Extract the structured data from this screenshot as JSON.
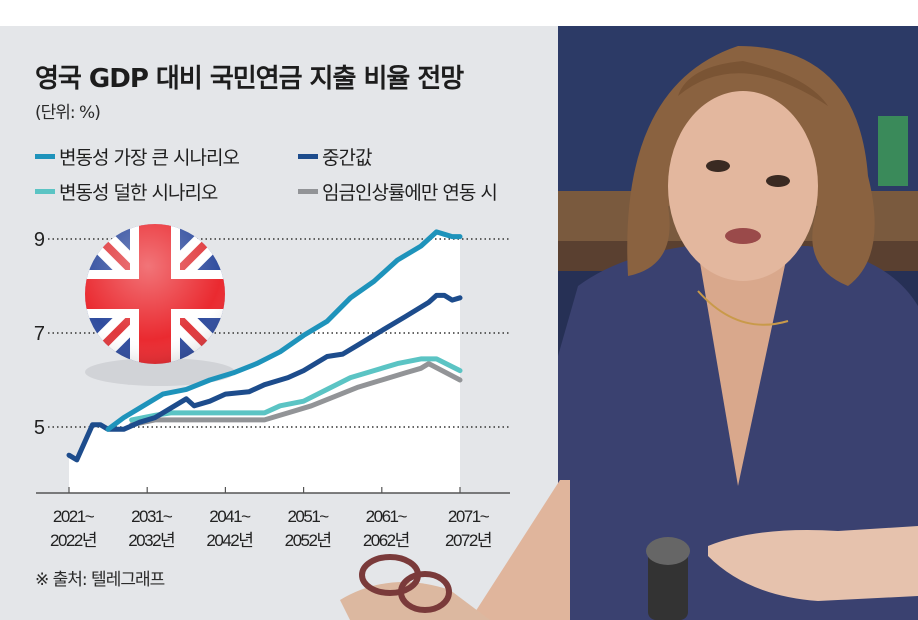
{
  "header": {
    "title": "영국 GDP 대비 국민연금 지출 비율 전망",
    "unit": "(단위: %)"
  },
  "legend": [
    {
      "label": "변동성 가장 큰 시나리오",
      "color": "#1e93bb"
    },
    {
      "label": "중간값",
      "color": "#1d4c8c"
    },
    {
      "label": "변동성 덜한 시나리오",
      "color": "#5bc4c4"
    },
    {
      "label": "임금인상률에만 연동 시",
      "color": "#929497"
    }
  ],
  "source": "※ 출처: 텔레그래프",
  "colors": {
    "panel_bg": "#e4e6e9",
    "plot_bg": "#ffffff",
    "axis": "#555555",
    "text": "#1d1d1d"
  },
  "chart_data": {
    "type": "line",
    "title": "영국 GDP 대비 국민연금 지출 비율 전망",
    "subtitle": "(단위: %)",
    "xlabel": "",
    "ylabel": "%",
    "ylim": [
      3.8,
      9.4
    ],
    "yticks": [
      5,
      7,
      9
    ],
    "ytick_labels": [
      "5",
      "7",
      "9"
    ],
    "xlim": [
      2021,
      2071
    ],
    "xticks": [
      2021,
      2031,
      2041,
      2051,
      2061,
      2071
    ],
    "xtick_labels": [
      [
        "2021~",
        "2022년"
      ],
      [
        "2031~",
        "2032년"
      ],
      [
        "2041~",
        "2042년"
      ],
      [
        "2051~",
        "2052년"
      ],
      [
        "2061~",
        "2062년"
      ],
      [
        "2071~",
        "2072년"
      ]
    ],
    "grid": "horizontal dotted at y ticks",
    "legend_position": "top-left, above plot",
    "series": [
      {
        "name": "변동성 가장 큰 시나리오",
        "color": "#1e93bb",
        "x": [
          2026,
          2028,
          2030,
          2033,
          2036,
          2039,
          2042,
          2045,
          2048,
          2051,
          2054,
          2057,
          2060,
          2063,
          2066,
          2068,
          2069,
          2070,
          2071
        ],
        "values": [
          4.95,
          5.2,
          5.4,
          5.7,
          5.8,
          6.0,
          6.15,
          6.35,
          6.6,
          6.95,
          7.25,
          7.75,
          8.1,
          8.55,
          8.85,
          9.15,
          9.1,
          9.05,
          9.05
        ]
      },
      {
        "name": "중간값",
        "color": "#1d4c8c",
        "x": [
          2021,
          2022,
          2024,
          2025,
          2026,
          2028,
          2030,
          2032,
          2034,
          2036,
          2037,
          2039,
          2041,
          2044,
          2046,
          2049,
          2051,
          2054,
          2056,
          2058,
          2061,
          2064,
          2067,
          2068,
          2069,
          2070,
          2071
        ],
        "values": [
          4.4,
          4.3,
          5.05,
          5.05,
          4.95,
          4.95,
          5.1,
          5.2,
          5.4,
          5.6,
          5.45,
          5.55,
          5.7,
          5.75,
          5.9,
          6.05,
          6.2,
          6.5,
          6.55,
          6.75,
          7.05,
          7.35,
          7.65,
          7.8,
          7.8,
          7.7,
          7.75
        ]
      },
      {
        "name": "변동성 덜한 시나리오",
        "color": "#5bc4c4",
        "x": [
          2029,
          2032,
          2034,
          2046,
          2048,
          2051,
          2054,
          2057,
          2060,
          2063,
          2066,
          2068,
          2071
        ],
        "values": [
          5.15,
          5.25,
          5.3,
          5.3,
          5.45,
          5.55,
          5.8,
          6.05,
          6.2,
          6.35,
          6.45,
          6.45,
          6.2
        ]
      },
      {
        "name": "임금인상률에만 연동 시",
        "color": "#929497",
        "x": [
          2029,
          2032,
          2034,
          2046,
          2049,
          2052,
          2055,
          2058,
          2061,
          2064,
          2066,
          2067,
          2071
        ],
        "values": [
          5.05,
          5.15,
          5.15,
          5.15,
          5.3,
          5.45,
          5.65,
          5.85,
          6.0,
          6.15,
          6.25,
          6.35,
          6.0
        ]
      }
    ]
  },
  "decorations": {
    "flag": "uk-flag-sphere",
    "photo": "woman-speaking-at-microphone"
  }
}
